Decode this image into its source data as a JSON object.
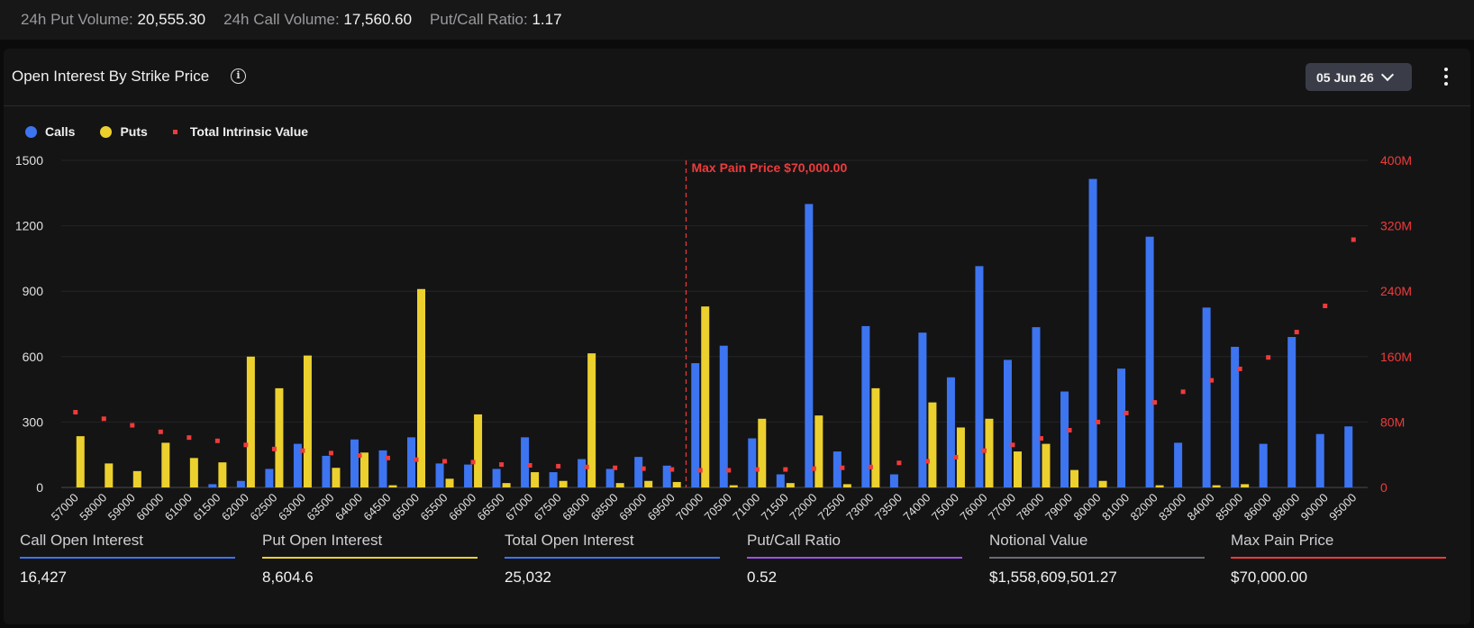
{
  "topbar": {
    "put_volume_label": "24h Put Volume:",
    "put_volume_value": "20,555.30",
    "call_volume_label": "24h Call Volume:",
    "call_volume_value": "17,560.60",
    "ratio_label": "Put/Call Ratio:",
    "ratio_value": "1.17"
  },
  "panel": {
    "title": "Open Interest By Strike Price",
    "info_icon": "info-icon",
    "date_selected": "05 Jun 26",
    "more_icon": "kebab-menu-icon"
  },
  "colors": {
    "calls": "#3d74f0",
    "puts": "#ecd02e",
    "intrinsic": "#ef3b3b",
    "purple": "#a04fe8",
    "grey": "#6b6b70"
  },
  "chart_data": {
    "type": "bar",
    "legend": [
      "Calls",
      "Puts",
      "Total Intrinsic Value"
    ],
    "categories": [
      "57000",
      "58000",
      "59000",
      "60000",
      "61000",
      "61500",
      "62000",
      "62500",
      "63000",
      "63500",
      "64000",
      "64500",
      "65000",
      "65500",
      "66000",
      "66500",
      "67000",
      "67500",
      "68000",
      "68500",
      "69000",
      "69500",
      "70000",
      "70500",
      "71000",
      "71500",
      "72000",
      "72500",
      "73000",
      "73500",
      "74000",
      "75000",
      "76000",
      "77000",
      "78000",
      "79000",
      "80000",
      "81000",
      "82000",
      "83000",
      "84000",
      "85000",
      "86000",
      "88000",
      "90000",
      "95000"
    ],
    "series": [
      {
        "name": "Calls",
        "axis": "left",
        "values": [
          0,
          0,
          0,
          0,
          0,
          15,
          30,
          85,
          200,
          145,
          220,
          170,
          230,
          110,
          105,
          85,
          230,
          70,
          130,
          85,
          140,
          100,
          570,
          650,
          225,
          60,
          1300,
          165,
          740,
          60,
          710,
          505,
          1015,
          585,
          735,
          440,
          1415,
          545,
          1150,
          205,
          825,
          645,
          200,
          690,
          245,
          280
        ]
      },
      {
        "name": "Puts",
        "axis": "left",
        "values": [
          235,
          110,
          75,
          205,
          135,
          115,
          600,
          455,
          605,
          90,
          160,
          10,
          910,
          40,
          335,
          20,
          70,
          30,
          615,
          20,
          30,
          25,
          830,
          10,
          315,
          20,
          330,
          15,
          455,
          0,
          390,
          275,
          315,
          165,
          200,
          80,
          30,
          0,
          10,
          0,
          10,
          15,
          0,
          0,
          0,
          0
        ]
      },
      {
        "name": "Total Intrinsic Value",
        "axis": "right",
        "type": "scatter",
        "values": [
          92,
          84,
          76,
          68,
          61,
          57,
          52,
          47,
          45,
          42,
          39,
          36,
          34,
          32,
          31,
          28,
          27,
          26,
          25,
          24,
          23,
          22,
          21,
          21,
          22,
          22,
          23,
          24,
          25,
          30,
          32,
          37,
          45,
          52,
          60,
          70,
          80,
          91,
          104,
          117,
          131,
          145,
          159,
          190,
          222,
          303
        ]
      }
    ],
    "ylim_left": [
      0,
      1500
    ],
    "yticks_left": [
      "0",
      "300",
      "600",
      "900",
      "1200",
      "1500"
    ],
    "ylim_right": [
      0,
      400
    ],
    "yticks_right": [
      "0",
      "80M",
      "160M",
      "240M",
      "320M",
      "400M"
    ],
    "max_pain_category": "70000",
    "annotation": "Max Pain Price $70,000.00",
    "grid": true,
    "legend_position": "top-left"
  },
  "summary": [
    {
      "label": "Call Open Interest",
      "value": "16,427",
      "color": "#3d74f0"
    },
    {
      "label": "Put Open Interest",
      "value": "8,604.6",
      "color": "#ecd02e"
    },
    {
      "label": "Total Open Interest",
      "value": "25,032",
      "color": "#3d74f0"
    },
    {
      "label": "Put/Call Ratio",
      "value": "0.52",
      "color": "#a04fe8"
    },
    {
      "label": "Notional Value",
      "value": "$1,558,609,501.27",
      "color": "#6b6b70"
    },
    {
      "label": "Max Pain Price",
      "value": "$70,000.00",
      "color": "#ef3b3b"
    }
  ]
}
